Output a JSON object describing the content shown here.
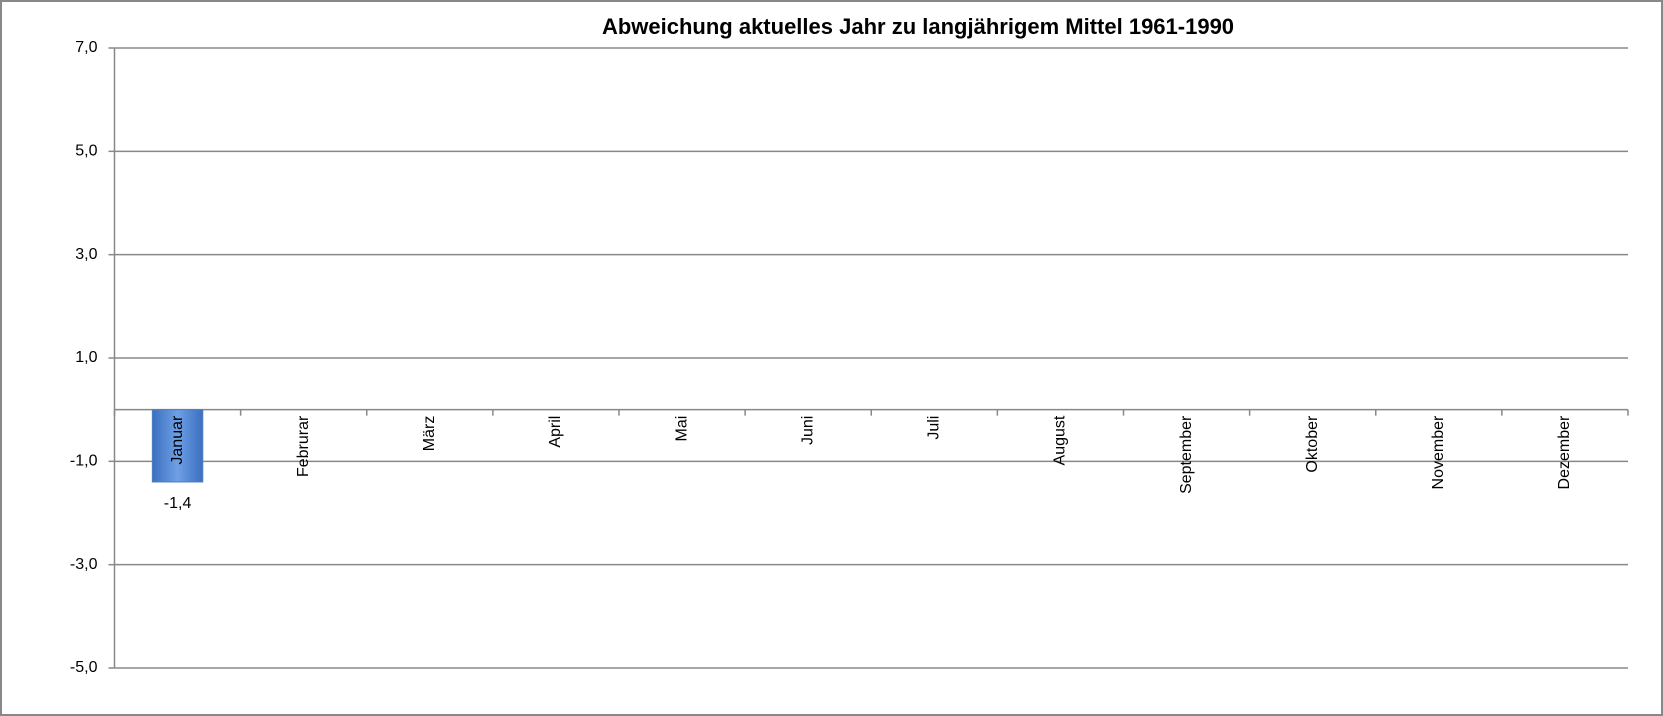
{
  "chart_data": {
    "type": "bar",
    "title": "Abweichung aktuelles Jahr zu langjährigem Mittel 1961-1990",
    "categories": [
      "Januar",
      "Februrar",
      "März",
      "April",
      "Mai",
      "Juni",
      "Juli",
      "August",
      "September",
      "Oktober",
      "November",
      "Dezember"
    ],
    "values": [
      -1.4,
      null,
      null,
      null,
      null,
      null,
      null,
      null,
      null,
      null,
      null,
      null
    ],
    "value_labels": [
      "-1,4",
      null,
      null,
      null,
      null,
      null,
      null,
      null,
      null,
      null,
      null,
      null
    ],
    "color": "#4f81bd",
    "ylim": [
      -5,
      7
    ],
    "yticks": [
      {
        "value": -5,
        "label": "-5,0"
      },
      {
        "value": -3,
        "label": "-3,0"
      },
      {
        "value": -1,
        "label": "-1,0"
      },
      {
        "value": 1,
        "label": "1,0"
      },
      {
        "value": 3,
        "label": "3,0"
      },
      {
        "value": 5,
        "label": "5,0"
      },
      {
        "value": 7,
        "label": "7,0"
      }
    ],
    "grid": true
  }
}
